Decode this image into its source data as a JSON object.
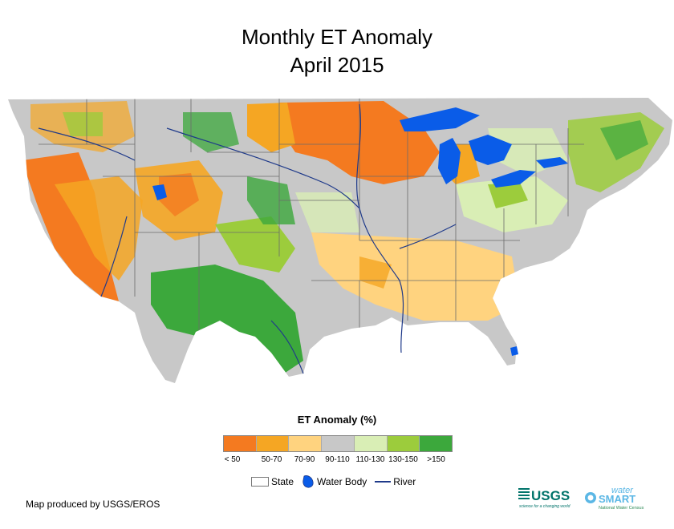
{
  "title": {
    "line1": "Monthly ET Anomaly",
    "line2": "April 2015"
  },
  "legend": {
    "title": "ET Anomaly (%)",
    "classes": [
      {
        "label": "< 50",
        "color": "#f47a20"
      },
      {
        "label": "50-70",
        "color": "#f5a623"
      },
      {
        "label": "70-90",
        "color": "#ffd37f"
      },
      {
        "label": "90-110",
        "color": "#c8c8c8"
      },
      {
        "label": "110-130",
        "color": "#d9eeb5"
      },
      {
        "label": "130-150",
        "color": "#9ccc3c"
      },
      {
        "label": ">150",
        "color": "#3ca83c"
      }
    ]
  },
  "reference_legend": {
    "state": "State",
    "water_body": "Water Body",
    "river": "River"
  },
  "credit": "Map produced by USGS/EROS",
  "logos": {
    "usgs": "USGS",
    "usgs_tagline": "science for a changing world",
    "watersmart_top": "water",
    "watersmart_main": "SMART",
    "watersmart_sub": "National Water Census"
  },
  "colors": {
    "water": "#0a5ce8",
    "river": "#1f3a8a",
    "state_border": "#6b6b6b"
  }
}
